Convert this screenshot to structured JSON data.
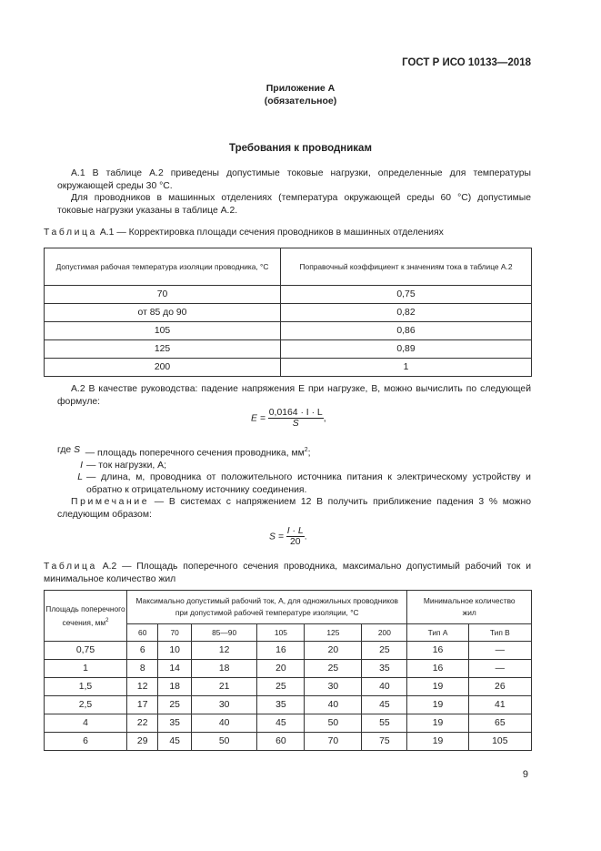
{
  "header": {
    "standard": "ГОСТ Р ИСО 10133—2018"
  },
  "appendix": {
    "title": "Приложение А",
    "subtitle": "(обязательное)"
  },
  "section_title": "Требования к проводникам",
  "paragraphs": {
    "a1": "А.1 В таблице А.2 приведены допустимые токовые нагрузки, определенные для температуры окружающей среды 30 °С.",
    "a1b": "Для проводников в машинных отделениях (температура окружающей среды 60 °С) допустимые токовые нагрузки указаны в таблице А.2.",
    "a2": "А.2 В качестве руководства: падение напряжения E при нагрузке, В, можно вычислить по следующей формуле:"
  },
  "table1": {
    "caption_label": "Таблица",
    "caption_text": "А.1 — Корректировка площади сечения проводников в машинных отделениях",
    "headers": [
      "Допустимая рабочая температура изоляции проводника, °С",
      "Поправочный коэффициент к значениям тока в таблице А.2"
    ],
    "rows": [
      [
        "70",
        "0,75"
      ],
      [
        "от 85 до 90",
        "0,82"
      ],
      [
        "105",
        "0,86"
      ],
      [
        "125",
        "0,89"
      ],
      [
        "200",
        "1"
      ]
    ]
  },
  "formula1": {
    "lhs": "E =",
    "numerator": "0,0164 · I · L",
    "denominator": "S",
    "tail": ","
  },
  "where": [
    {
      "prefix": "где",
      "sym": "S",
      "text": "— площадь поперечного сечения проводника, мм",
      "sup": "2",
      "end": ";"
    },
    {
      "sym": "I",
      "text": "— ток нагрузки, А;"
    },
    {
      "sym": "L",
      "text": "— длина, м, проводника от положительного источника питания к электрическому устройству и обратно к отрицательному источнику соединения."
    }
  ],
  "note": {
    "label": "Примечание",
    "text": " — В системах с напряжением 12 В получить приближение падения 3 % можно следующим образом:"
  },
  "formula2": {
    "lhs": "S =",
    "numerator": "I · L",
    "denominator": "20",
    "tail": "."
  },
  "table2": {
    "caption_label": "Таблица",
    "caption_text": "А.2 — Площадь поперечного сечения проводника, максимально допустимый рабочий ток и минимальное количество жил",
    "header_area": "Площадь поперечного сечения, мм",
    "header_area_sup": "2",
    "header_current": "Максимально допустимый рабочий ток, А, для одножильных проводников при допустимой рабочей температуре изоляции, °С",
    "header_cores": "Минимальное количество жил",
    "subheaders": [
      "60",
      "70",
      "85—90",
      "105",
      "125",
      "200",
      "Тип А",
      "Тип В"
    ],
    "rows": [
      [
        "0,75",
        "6",
        "10",
        "12",
        "16",
        "20",
        "25",
        "16",
        "—"
      ],
      [
        "1",
        "8",
        "14",
        "18",
        "20",
        "25",
        "35",
        "16",
        "—"
      ],
      [
        "1,5",
        "12",
        "18",
        "21",
        "25",
        "30",
        "40",
        "19",
        "26"
      ],
      [
        "2,5",
        "17",
        "25",
        "30",
        "35",
        "40",
        "45",
        "19",
        "41"
      ],
      [
        "4",
        "22",
        "35",
        "40",
        "45",
        "50",
        "55",
        "19",
        "65"
      ],
      [
        "6",
        "29",
        "45",
        "50",
        "60",
        "70",
        "75",
        "19",
        "105"
      ]
    ]
  },
  "page_number": "9"
}
